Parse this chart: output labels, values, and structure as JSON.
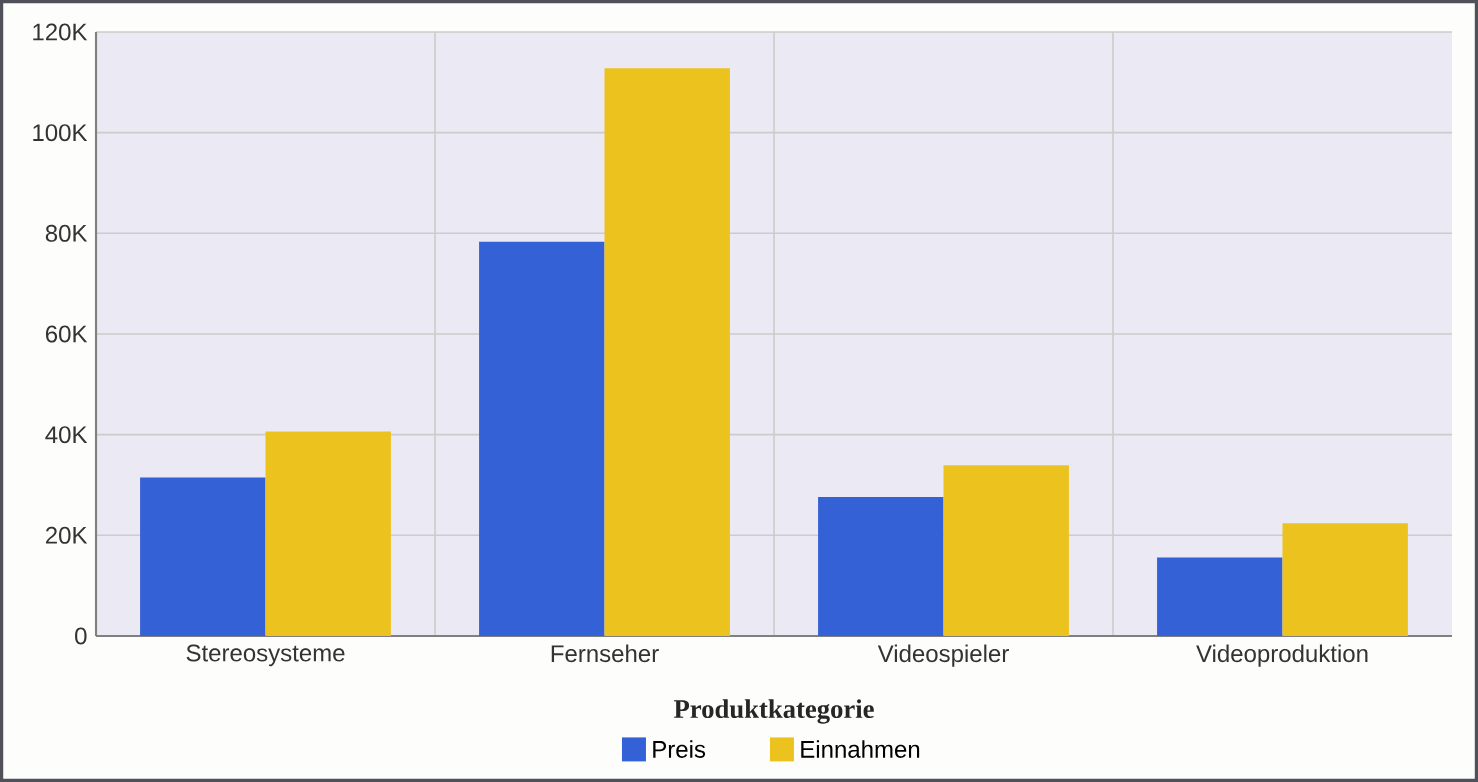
{
  "chart_data": {
    "type": "bar",
    "xlabel": "Produktkategorie",
    "categories": [
      "Stereosysteme",
      "Fernseher",
      "Videospieler",
      "Videoproduktion"
    ],
    "series": [
      {
        "name": "Preis",
        "color": "#3461d6",
        "values": [
          31500,
          78300,
          27600,
          15600
        ]
      },
      {
        "name": "Einnahmen",
        "color": "#ecc31e",
        "values": [
          40600,
          112800,
          33900,
          22400
        ]
      }
    ],
    "ylim": [
      0,
      120000
    ],
    "yticks": [
      0,
      {
        "value": 20000,
        "label": "20K"
      },
      {
        "value": 40000,
        "label": "40K"
      },
      {
        "value": 60000,
        "label": "60K"
      },
      {
        "value": 80000,
        "label": "80K"
      },
      {
        "value": 100000,
        "label": "100K"
      },
      {
        "value": 120000,
        "label": "120K"
      }
    ],
    "grid": true,
    "legend": "bottom"
  }
}
